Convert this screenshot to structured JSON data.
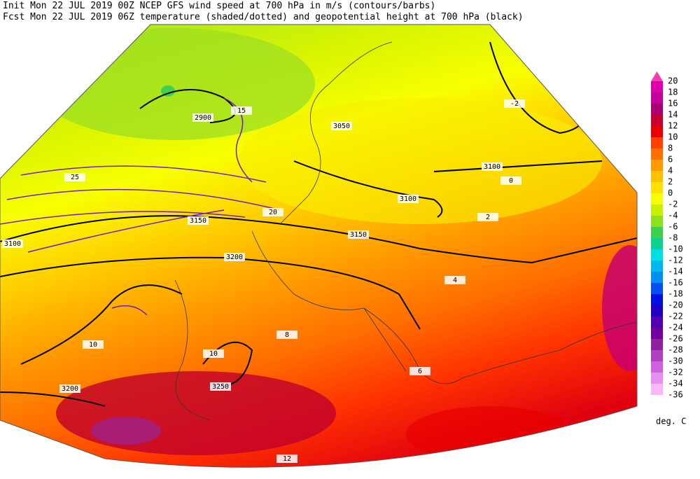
{
  "header": {
    "line1": "Init  Mon 22 JUL 2019 00Z  NCEP GFS wind speed at 700 hPa in m/s (contours/barbs)",
    "line2": "Fcst Mon 22 JUL 2019 06Z  temperature (shaded/dotted) and geopotential height at 700 hPa (black)"
  },
  "colorbar": {
    "labels": [
      20,
      18,
      16,
      14,
      12,
      10,
      8,
      6,
      4,
      2,
      0,
      -2,
      -4,
      -6,
      -8,
      -10,
      -12,
      -14,
      -16,
      -18,
      -20,
      -22,
      -24,
      -26,
      -28,
      -30,
      -32,
      -34,
      -36
    ],
    "colors": [
      "#dd00aa",
      "#c4009c",
      "#a8006e",
      "#c80030",
      "#e80000",
      "#ff4000",
      "#ff7000",
      "#ff9a00",
      "#ffc000",
      "#ffe000",
      "#f8ff00",
      "#c8f000",
      "#90e020",
      "#40d050",
      "#10d090",
      "#00e0e0",
      "#00b8f0",
      "#0090f0",
      "#0050f0",
      "#0010e0",
      "#2000c0",
      "#5000b0",
      "#7000a0",
      "#9020a0",
      "#b040c0",
      "#d060e0",
      "#e890f0",
      "#f8b8f8"
    ],
    "over_color": "#f040b0",
    "units": "deg. C"
  },
  "map": {
    "contour_labels": [
      "2900",
      "3050",
      "3100",
      "3100",
      "3150",
      "3150",
      "3200",
      "3200",
      "3250",
      "3100",
      "-2",
      "0",
      "2",
      "4",
      "6",
      "8",
      "10",
      "10",
      "12",
      "15",
      "20",
      "25"
    ]
  }
}
